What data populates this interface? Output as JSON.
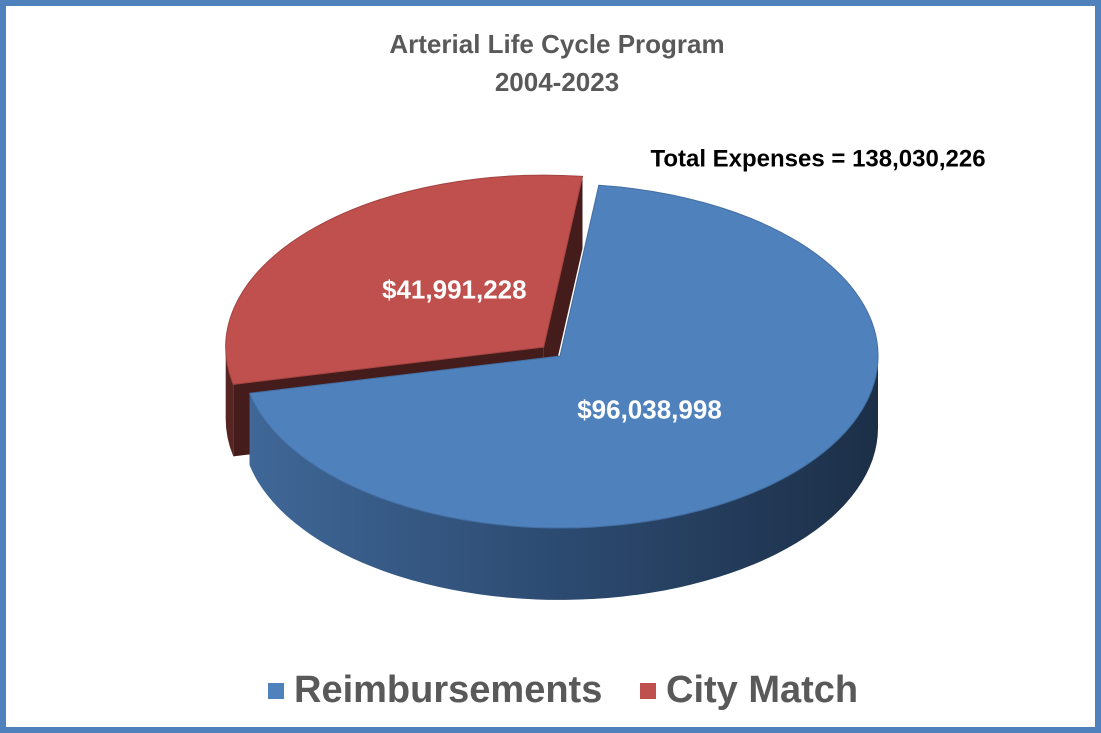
{
  "chart_data": {
    "type": "pie3d",
    "title": [
      "Arterial Life Cycle Program",
      "2004-2023"
    ],
    "annotation": "Total Expenses = 138,030,226",
    "categories": [
      "Reimbursements",
      "City Match"
    ],
    "values": [
      96038998,
      41991228
    ],
    "value_labels": [
      "$96,038,998",
      "$41,991,228"
    ],
    "colors": [
      "#4f81bd",
      "#c0504d"
    ],
    "legend": "bottom"
  }
}
